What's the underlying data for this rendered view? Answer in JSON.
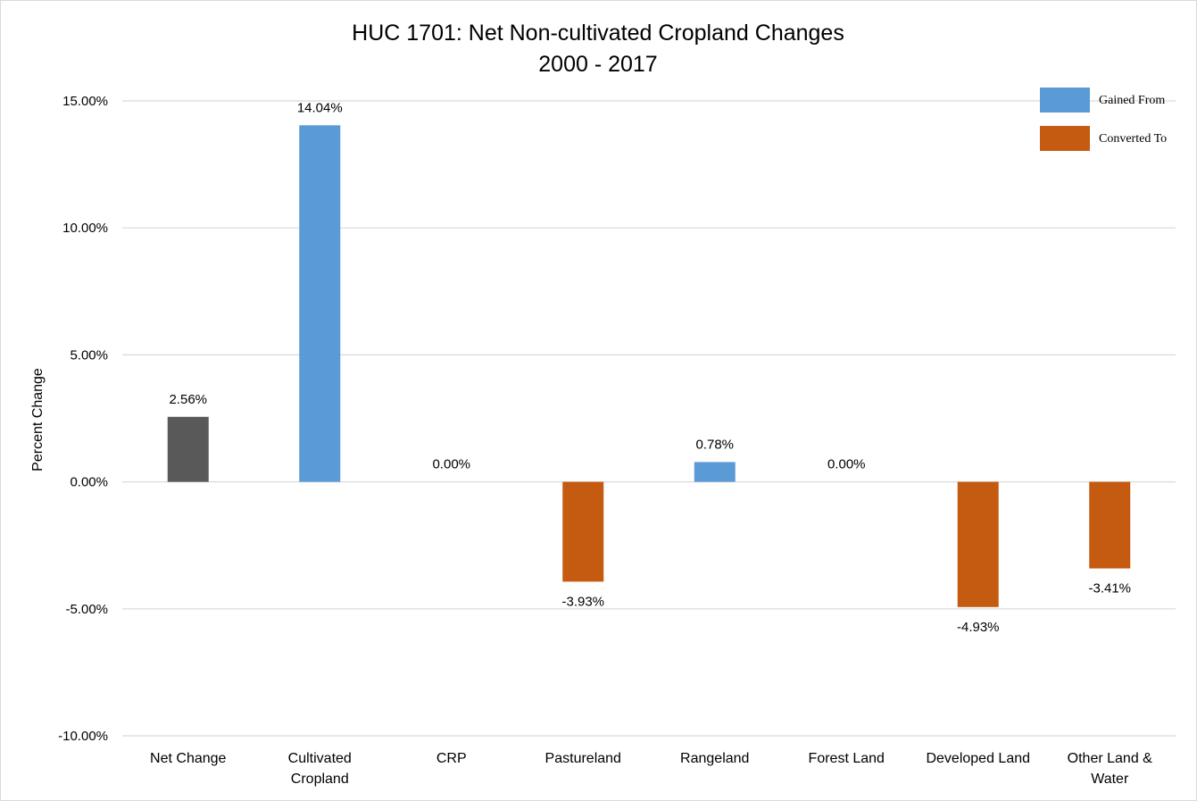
{
  "chart_data": {
    "type": "bar",
    "title_line1": "HUC 1701: Net Non-cultivated Cropland Changes",
    "title_line2": "2000 - 2017",
    "xlabel": "",
    "ylabel": "Percent Change",
    "ylim": [
      -10,
      15
    ],
    "yticks": [
      15,
      10,
      5,
      0,
      -5,
      -10
    ],
    "ytick_labels": [
      "15.00%",
      "10.00%",
      "5.00%",
      "0.00%",
      "-5.00%",
      "-10.00%"
    ],
    "grid": true,
    "legend_position": "top-right",
    "categories": [
      [
        "Net Change"
      ],
      [
        "Cultivated",
        "Cropland"
      ],
      [
        "CRP"
      ],
      [
        "Pastureland"
      ],
      [
        "Rangeland"
      ],
      [
        "Forest Land"
      ],
      [
        "Developed Land"
      ],
      [
        "Other Land &",
        "Water"
      ]
    ],
    "values": [
      2.56,
      14.04,
      0.0,
      -3.93,
      0.78,
      0.0,
      -4.93,
      -3.41
    ],
    "value_labels": [
      "2.56%",
      "14.04%",
      "0.00%",
      "-3.93%",
      "0.78%",
      "0.00%",
      "-4.93%",
      "-3.41%"
    ],
    "bar_series": [
      "net",
      "gained",
      "gained",
      "converted",
      "gained",
      "gained",
      "converted",
      "converted"
    ],
    "legend": [
      {
        "key": "gained",
        "label": "Gained From",
        "color": "#5b9bd5"
      },
      {
        "key": "converted",
        "label": "Converted To",
        "color": "#c55a11"
      }
    ],
    "colors": {
      "net": "#595959",
      "gained": "#5b9bd5",
      "converted": "#c55a11",
      "grid": "#d9d9d9"
    }
  }
}
